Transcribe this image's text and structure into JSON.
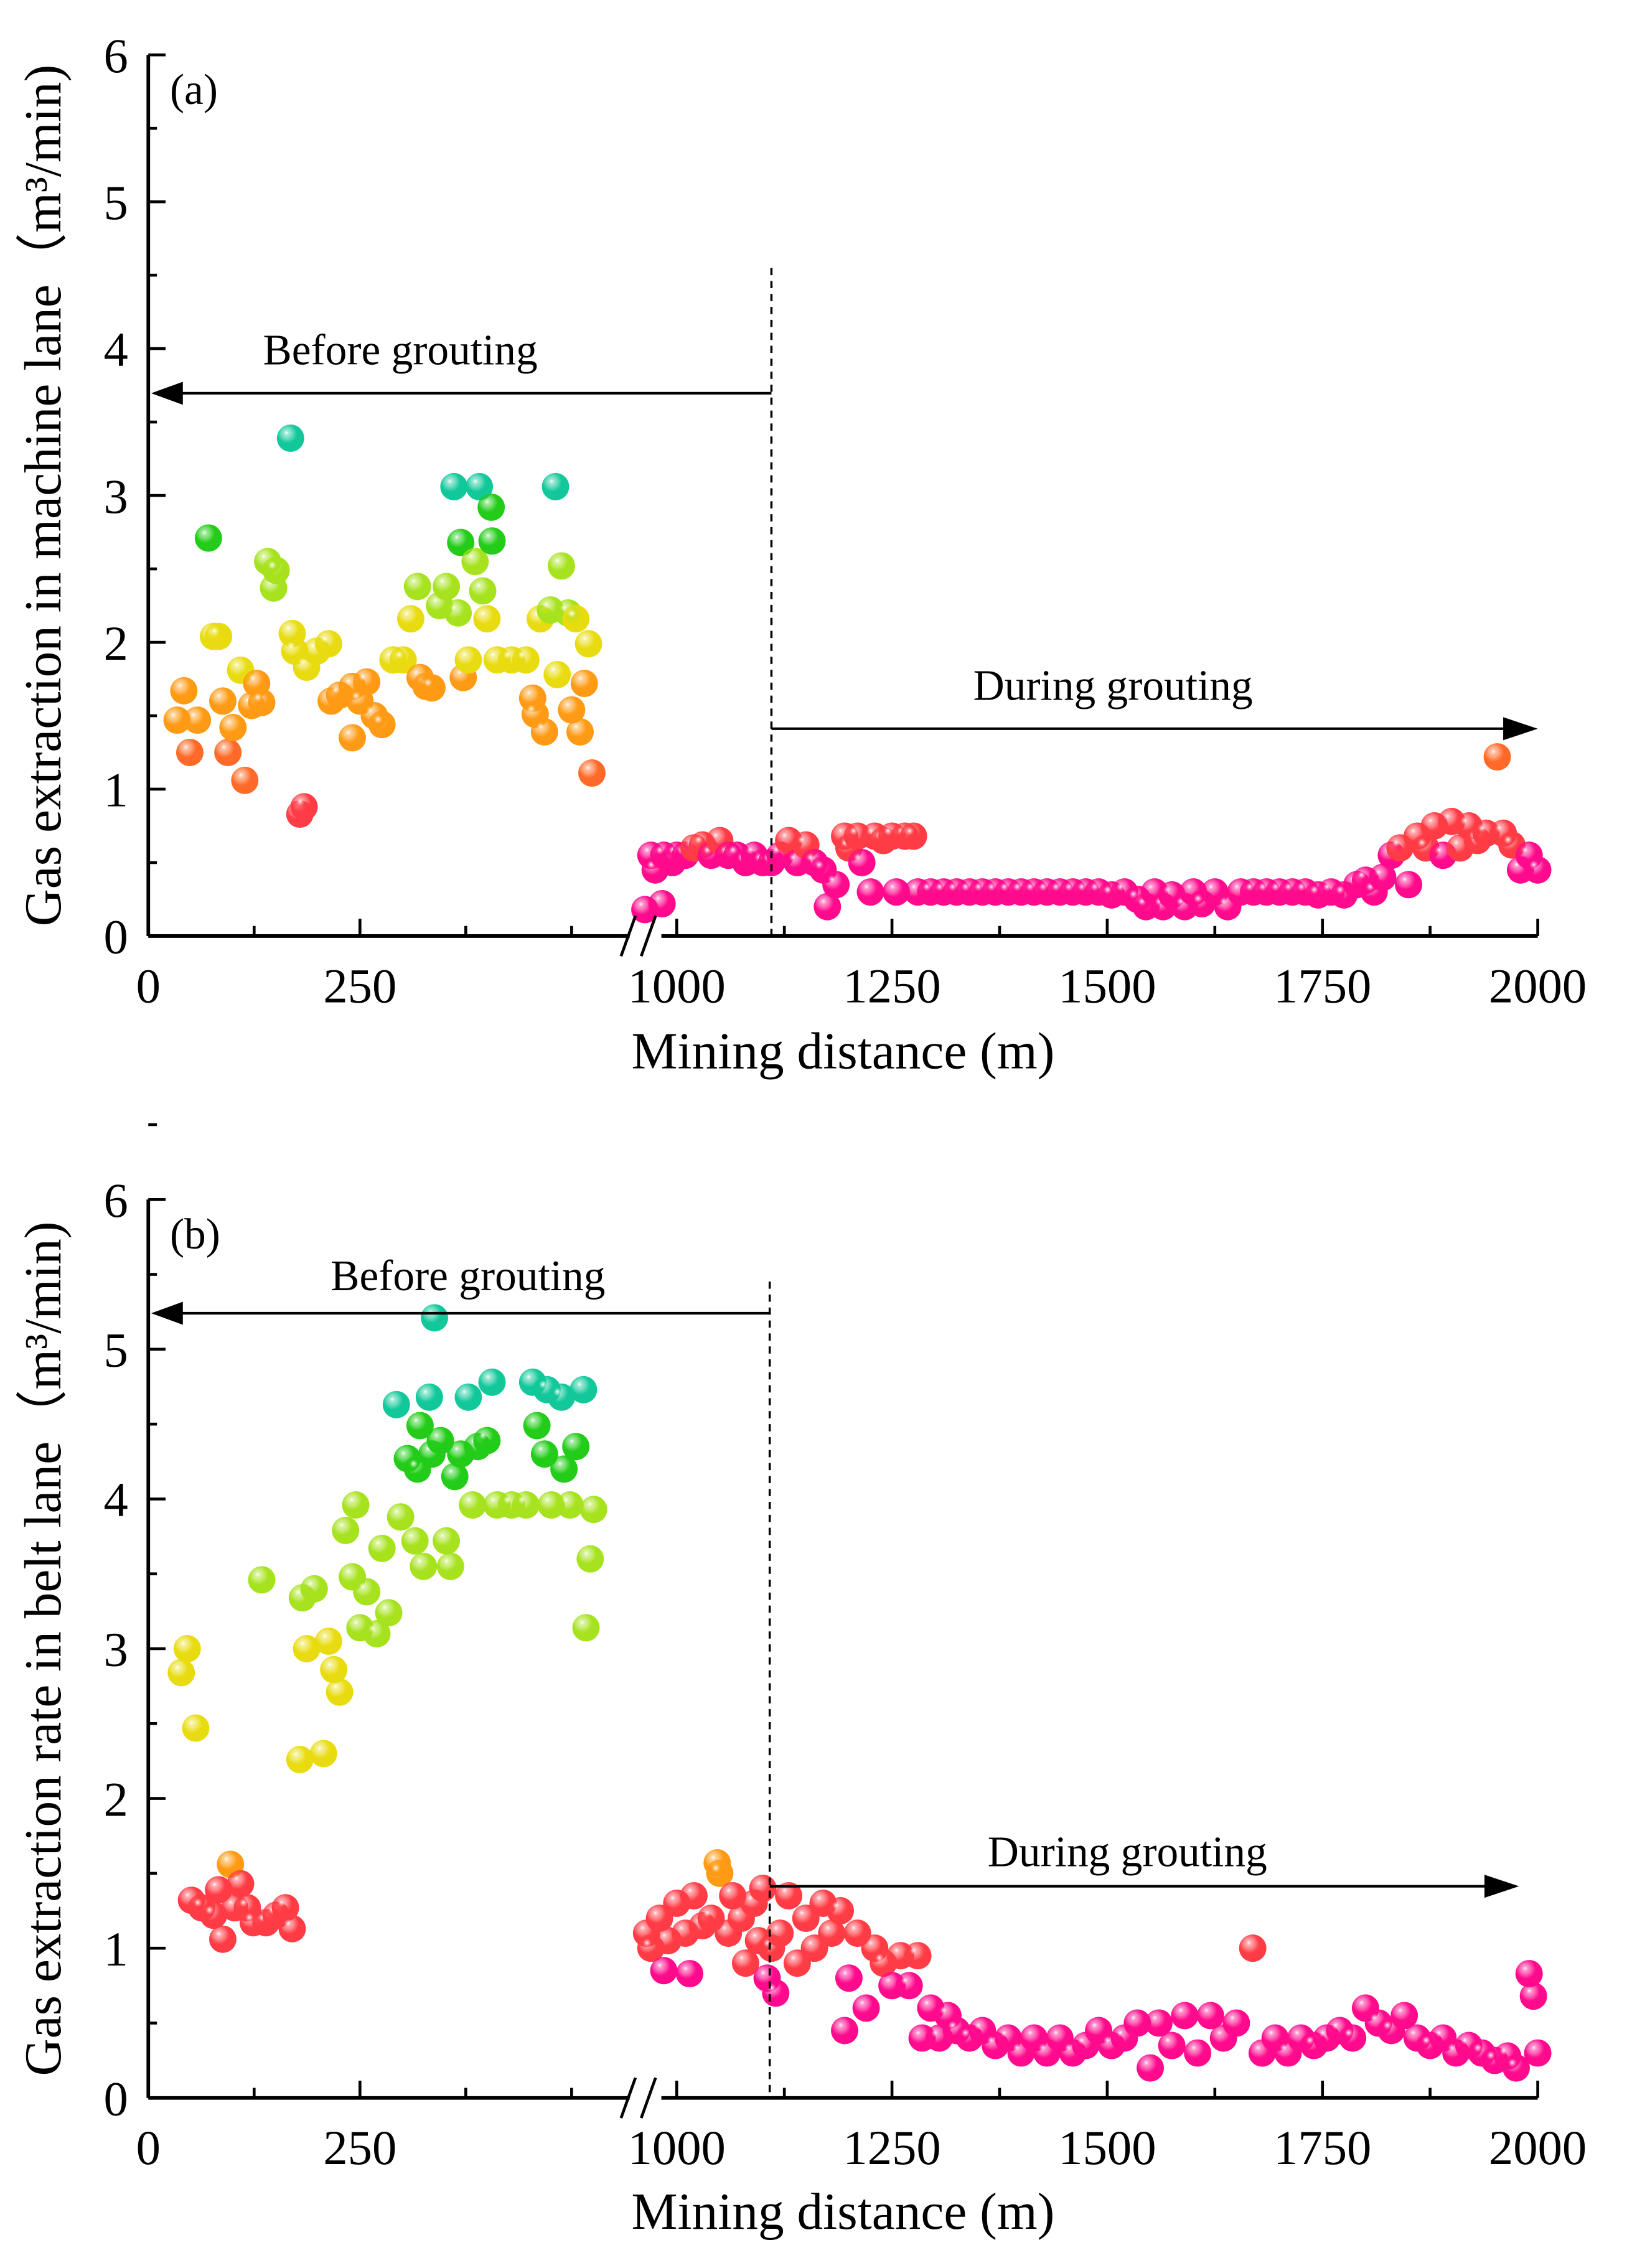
{
  "chart_data": [
    {
      "type": "scatter",
      "panel_label": "(a)",
      "xlabel": "Mining distance (m)",
      "ylabel": "Gas extraction in machine lane（m³/min)",
      "ylim": [
        0,
        6
      ],
      "yticks": [
        "0",
        "1",
        "2",
        "3",
        "4",
        "5",
        "6"
      ],
      "xticks": [
        "0",
        "250",
        "1000",
        "1250",
        "1500",
        "1750",
        "2000"
      ],
      "xaxis_break": [
        555,
        950
      ],
      "divider_x": 1110,
      "annotations": {
        "before": "Before grouting",
        "during": "During grouting"
      },
      "color_stops": [
        [
          0,
          "#ff0a8c"
        ],
        [
          0.58,
          "#ff3c46"
        ],
        [
          1.0,
          "#ff6a28"
        ],
        [
          1.3,
          "#ff9a14"
        ],
        [
          1.78,
          "#e8dc10"
        ],
        [
          2.2,
          "#a6e21e"
        ],
        [
          2.6,
          "#22cc18"
        ],
        [
          3.0,
          "#12c89a"
        ]
      ],
      "points": [
        [
          34,
          1.47
        ],
        [
          42,
          1.67
        ],
        [
          49,
          1.25
        ],
        [
          58,
          1.47
        ],
        [
          71,
          2.71
        ],
        [
          77,
          2.04
        ],
        [
          83,
          2.04
        ],
        [
          88,
          1.6
        ],
        [
          94,
          1.25
        ],
        [
          100,
          1.42
        ],
        [
          109,
          1.81
        ],
        [
          114,
          1.06
        ],
        [
          122,
          1.57
        ],
        [
          128,
          1.72
        ],
        [
          134,
          1.59
        ],
        [
          141,
          2.55
        ],
        [
          148,
          2.37
        ],
        [
          151,
          2.49
        ],
        [
          168,
          3.39
        ],
        [
          170,
          2.06
        ],
        [
          173,
          1.94
        ],
        [
          179,
          0.83
        ],
        [
          184,
          0.88
        ],
        [
          187,
          1.83
        ],
        [
          199,
          1.94
        ],
        [
          213,
          1.99
        ],
        [
          216,
          1.6
        ],
        [
          226,
          1.64
        ],
        [
          241,
          1.35
        ],
        [
          241,
          1.7
        ],
        [
          250,
          1.6
        ],
        [
          258,
          1.73
        ],
        [
          267,
          1.5
        ],
        [
          276,
          1.44
        ],
        [
          289,
          1.88
        ],
        [
          301,
          1.88
        ],
        [
          310,
          2.16
        ],
        [
          318,
          2.38
        ],
        [
          321,
          1.76
        ],
        [
          328,
          1.7
        ],
        [
          335,
          1.69
        ],
        [
          344,
          2.25
        ],
        [
          352,
          2.38
        ],
        [
          361,
          3.06
        ],
        [
          366,
          2.2
        ],
        [
          369,
          2.68
        ],
        [
          372,
          1.76
        ],
        [
          378,
          1.88
        ],
        [
          386,
          2.55
        ],
        [
          391,
          3.06
        ],
        [
          395,
          2.35
        ],
        [
          400,
          2.16
        ],
        [
          405,
          2.92
        ],
        [
          406,
          2.69
        ],
        [
          412,
          1.88
        ],
        [
          429,
          1.88
        ],
        [
          446,
          1.88
        ],
        [
          454,
          1.62
        ],
        [
          457,
          1.51
        ],
        [
          463,
          2.16
        ],
        [
          468,
          1.39
        ],
        [
          475,
          2.22
        ],
        [
          481,
          3.06
        ],
        [
          483,
          1.78
        ],
        [
          488,
          2.52
        ],
        [
          496,
          2.2
        ],
        [
          500,
          1.54
        ],
        [
          505,
          2.16
        ],
        [
          510,
          1.39
        ],
        [
          515,
          1.72
        ],
        [
          520,
          1.99
        ],
        [
          524,
          1.11
        ],
        [
          963,
          0.18
        ],
        [
          970,
          0.55
        ],
        [
          975,
          0.45
        ],
        [
          983,
          0.22
        ],
        [
          985,
          0.55
        ],
        [
          995,
          0.5
        ],
        [
          1000,
          0.55
        ],
        [
          1010,
          0.55
        ],
        [
          1020,
          0.6
        ],
        [
          1030,
          0.62
        ],
        [
          1040,
          0.55
        ],
        [
          1050,
          0.65
        ],
        [
          1060,
          0.55
        ],
        [
          1070,
          0.55
        ],
        [
          1080,
          0.5
        ],
        [
          1090,
          0.55
        ],
        [
          1100,
          0.5
        ],
        [
          1110,
          0.5
        ],
        [
          1120,
          0.55
        ],
        [
          1130,
          0.65
        ],
        [
          1140,
          0.5
        ],
        [
          1150,
          0.62
        ],
        [
          1160,
          0.5
        ],
        [
          1170,
          0.45
        ],
        [
          1175,
          0.2
        ],
        [
          1185,
          0.35
        ],
        [
          1195,
          0.68
        ],
        [
          1200,
          0.6
        ],
        [
          1210,
          0.68
        ],
        [
          1215,
          0.5
        ],
        [
          1225,
          0.3
        ],
        [
          1230,
          0.68
        ],
        [
          1240,
          0.65
        ],
        [
          1250,
          0.68
        ],
        [
          1255,
          0.3
        ],
        [
          1265,
          0.68
        ],
        [
          1275,
          0.68
        ],
        [
          1280,
          0.3
        ],
        [
          1295,
          0.3
        ],
        [
          1310,
          0.3
        ],
        [
          1325,
          0.3
        ],
        [
          1340,
          0.3
        ],
        [
          1355,
          0.3
        ],
        [
          1370,
          0.3
        ],
        [
          1385,
          0.3
        ],
        [
          1400,
          0.3
        ],
        [
          1415,
          0.3
        ],
        [
          1430,
          0.3
        ],
        [
          1445,
          0.3
        ],
        [
          1460,
          0.3
        ],
        [
          1475,
          0.3
        ],
        [
          1490,
          0.3
        ],
        [
          1505,
          0.28
        ],
        [
          1520,
          0.3
        ],
        [
          1535,
          0.25
        ],
        [
          1545,
          0.2
        ],
        [
          1555,
          0.3
        ],
        [
          1565,
          0.2
        ],
        [
          1575,
          0.28
        ],
        [
          1590,
          0.2
        ],
        [
          1600,
          0.3
        ],
        [
          1610,
          0.22
        ],
        [
          1625,
          0.3
        ],
        [
          1640,
          0.2
        ],
        [
          1655,
          0.3
        ],
        [
          1670,
          0.3
        ],
        [
          1685,
          0.3
        ],
        [
          1700,
          0.3
        ],
        [
          1715,
          0.3
        ],
        [
          1730,
          0.3
        ],
        [
          1745,
          0.28
        ],
        [
          1760,
          0.3
        ],
        [
          1775,
          0.28
        ],
        [
          1790,
          0.35
        ],
        [
          1800,
          0.38
        ],
        [
          1810,
          0.3
        ],
        [
          1820,
          0.4
        ],
        [
          1830,
          0.55
        ],
        [
          1840,
          0.6
        ],
        [
          1850,
          0.35
        ],
        [
          1860,
          0.68
        ],
        [
          1870,
          0.6
        ],
        [
          1880,
          0.75
        ],
        [
          1890,
          0.55
        ],
        [
          1900,
          0.78
        ],
        [
          1910,
          0.6
        ],
        [
          1920,
          0.75
        ],
        [
          1930,
          0.65
        ],
        [
          1940,
          0.7
        ],
        [
          1953,
          1.22
        ],
        [
          1960,
          0.7
        ],
        [
          1970,
          0.62
        ],
        [
          1980,
          0.45
        ],
        [
          1990,
          0.55
        ],
        [
          2000,
          0.45
        ]
      ]
    },
    {
      "type": "scatter",
      "panel_label": "(b)",
      "xlabel": "Mining distance (m)",
      "ylabel": "Gas extraction rate in belt lane（m³/min)",
      "ylim": [
        0,
        6
      ],
      "yticks": [
        "0",
        "1",
        "2",
        "3",
        "4",
        "5",
        "6"
      ],
      "xticks": [
        "0",
        "250",
        "1000",
        "1250",
        "1500",
        "1750",
        "2000"
      ],
      "xaxis_break": [
        555,
        950
      ],
      "divider_x": 1108,
      "annotations": {
        "before": "Before grouting",
        "during": "During grouting"
      },
      "color_stops": [
        [
          0,
          "#ff0a8c"
        ],
        [
          0.86,
          "#ff3c46"
        ],
        [
          1.45,
          "#ff9a14"
        ],
        [
          2.2,
          "#e8dc10"
        ],
        [
          3.1,
          "#a6e21e"
        ],
        [
          4.1,
          "#22cc18"
        ],
        [
          4.6,
          "#12c89a"
        ]
      ],
      "points": [
        [
          39,
          2.84
        ],
        [
          46,
          3.0
        ],
        [
          56,
          2.47
        ],
        [
          51,
          1.32
        ],
        [
          63,
          1.27
        ],
        [
          77,
          1.22
        ],
        [
          83,
          1.39
        ],
        [
          88,
          1.06
        ],
        [
          97,
          1.56
        ],
        [
          102,
          1.27
        ],
        [
          109,
          1.43
        ],
        [
          117,
          1.27
        ],
        [
          124,
          1.17
        ],
        [
          134,
          3.46
        ],
        [
          139,
          1.17
        ],
        [
          151,
          1.22
        ],
        [
          162,
          1.27
        ],
        [
          170,
          1.13
        ],
        [
          179,
          2.26
        ],
        [
          182,
          3.34
        ],
        [
          187,
          3.0
        ],
        [
          196,
          3.4
        ],
        [
          207,
          2.3
        ],
        [
          213,
          3.05
        ],
        [
          219,
          2.86
        ],
        [
          226,
          2.71
        ],
        [
          233,
          3.79
        ],
        [
          241,
          3.48
        ],
        [
          245,
          3.96
        ],
        [
          250,
          3.14
        ],
        [
          258,
          3.38
        ],
        [
          270,
          3.1
        ],
        [
          276,
          3.67
        ],
        [
          284,
          3.24
        ],
        [
          293,
          4.63
        ],
        [
          298,
          3.88
        ],
        [
          306,
          4.27
        ],
        [
          315,
          3.72
        ],
        [
          318,
          4.2
        ],
        [
          321,
          4.49
        ],
        [
          325,
          3.55
        ],
        [
          332,
          4.68
        ],
        [
          335,
          4.3
        ],
        [
          338,
          5.21
        ],
        [
          345,
          4.39
        ],
        [
          352,
          3.72
        ],
        [
          357,
          3.55
        ],
        [
          362,
          4.15
        ],
        [
          369,
          4.3
        ],
        [
          378,
          4.68
        ],
        [
          383,
          3.96
        ],
        [
          389,
          4.35
        ],
        [
          400,
          4.39
        ],
        [
          406,
          4.78
        ],
        [
          412,
          3.96
        ],
        [
          429,
          3.96
        ],
        [
          446,
          3.96
        ],
        [
          454,
          4.78
        ],
        [
          459,
          4.49
        ],
        [
          468,
          4.3
        ],
        [
          471,
          4.73
        ],
        [
          476,
          3.96
        ],
        [
          488,
          4.68
        ],
        [
          491,
          4.2
        ],
        [
          498,
          3.96
        ],
        [
          505,
          4.35
        ],
        [
          514,
          4.73
        ],
        [
          517,
          3.14
        ],
        [
          522,
          3.6
        ],
        [
          526,
          3.93
        ],
        [
          965,
          1.1
        ],
        [
          970,
          1.0
        ],
        [
          980,
          1.2
        ],
        [
          985,
          0.85
        ],
        [
          990,
          1.05
        ],
        [
          1000,
          1.3
        ],
        [
          1010,
          1.1
        ],
        [
          1015,
          0.83
        ],
        [
          1020,
          1.35
        ],
        [
          1030,
          1.15
        ],
        [
          1040,
          1.2
        ],
        [
          1047,
          1.57
        ],
        [
          1050,
          1.5
        ],
        [
          1060,
          1.1
        ],
        [
          1065,
          1.35
        ],
        [
          1075,
          1.2
        ],
        [
          1080,
          0.9
        ],
        [
          1090,
          1.3
        ],
        [
          1095,
          1.05
        ],
        [
          1100,
          1.4
        ],
        [
          1105,
          0.8
        ],
        [
          1110,
          1.0
        ],
        [
          1115,
          0.7
        ],
        [
          1120,
          1.1
        ],
        [
          1130,
          1.35
        ],
        [
          1140,
          0.9
        ],
        [
          1150,
          1.2
        ],
        [
          1160,
          1.0
        ],
        [
          1170,
          1.3
        ],
        [
          1180,
          1.1
        ],
        [
          1190,
          1.25
        ],
        [
          1195,
          0.45
        ],
        [
          1200,
          0.8
        ],
        [
          1210,
          1.1
        ],
        [
          1220,
          0.6
        ],
        [
          1230,
          1.0
        ],
        [
          1240,
          0.9
        ],
        [
          1250,
          0.75
        ],
        [
          1260,
          0.95
        ],
        [
          1270,
          0.75
        ],
        [
          1280,
          0.95
        ],
        [
          1285,
          0.4
        ],
        [
          1295,
          0.6
        ],
        [
          1305,
          0.4
        ],
        [
          1315,
          0.55
        ],
        [
          1325,
          0.45
        ],
        [
          1340,
          0.4
        ],
        [
          1355,
          0.45
        ],
        [
          1370,
          0.35
        ],
        [
          1385,
          0.4
        ],
        [
          1400,
          0.3
        ],
        [
          1415,
          0.4
        ],
        [
          1430,
          0.3
        ],
        [
          1445,
          0.4
        ],
        [
          1460,
          0.3
        ],
        [
          1475,
          0.35
        ],
        [
          1490,
          0.45
        ],
        [
          1505,
          0.35
        ],
        [
          1520,
          0.4
        ],
        [
          1535,
          0.5
        ],
        [
          1550,
          0.2
        ],
        [
          1560,
          0.5
        ],
        [
          1575,
          0.35
        ],
        [
          1590,
          0.55
        ],
        [
          1605,
          0.3
        ],
        [
          1620,
          0.55
        ],
        [
          1635,
          0.4
        ],
        [
          1650,
          0.5
        ],
        [
          1669,
          1.0
        ],
        [
          1680,
          0.3
        ],
        [
          1695,
          0.4
        ],
        [
          1710,
          0.3
        ],
        [
          1725,
          0.4
        ],
        [
          1740,
          0.35
        ],
        [
          1755,
          0.4
        ],
        [
          1770,
          0.45
        ],
        [
          1785,
          0.4
        ],
        [
          1800,
          0.6
        ],
        [
          1815,
          0.5
        ],
        [
          1830,
          0.45
        ],
        [
          1845,
          0.55
        ],
        [
          1860,
          0.4
        ],
        [
          1875,
          0.35
        ],
        [
          1890,
          0.4
        ],
        [
          1905,
          0.3
        ],
        [
          1920,
          0.35
        ],
        [
          1935,
          0.3
        ],
        [
          1950,
          0.25
        ],
        [
          1965,
          0.28
        ],
        [
          1975,
          0.2
        ],
        [
          1990,
          0.83
        ],
        [
          1995,
          0.68
        ],
        [
          2000,
          0.3
        ]
      ]
    }
  ]
}
